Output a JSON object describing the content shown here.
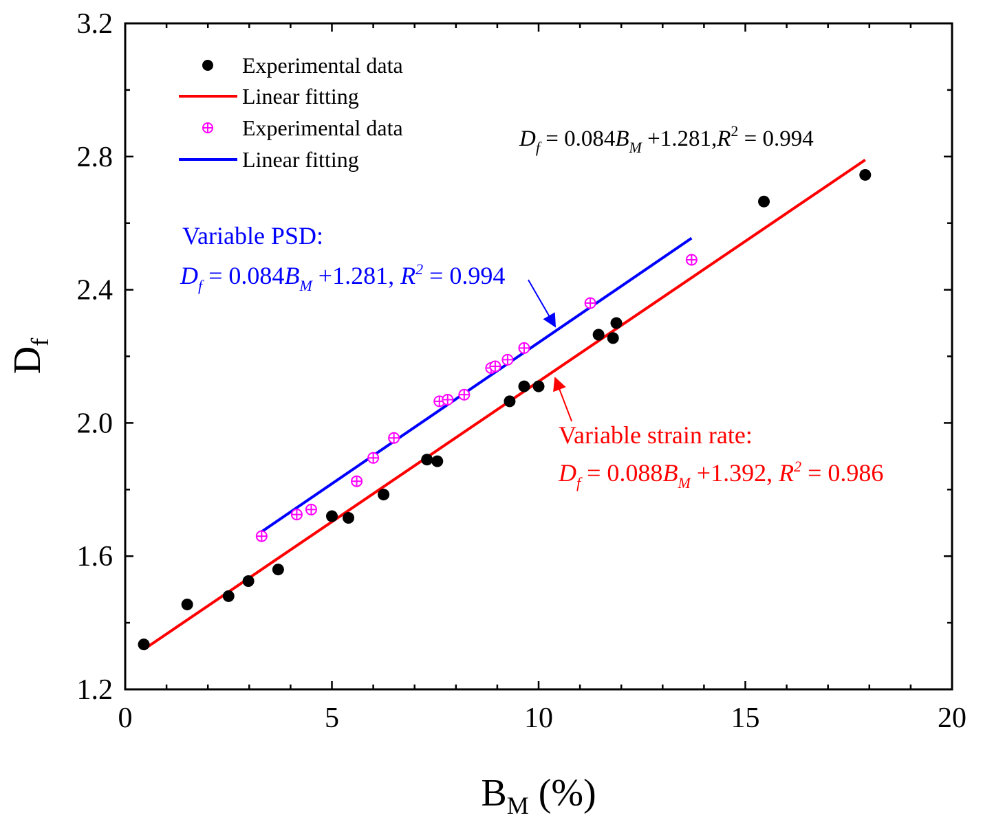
{
  "chart_data": {
    "type": "scatter",
    "xlabel": "B",
    "xlabel_sub": "M",
    "xlabel_unit": " (%)",
    "ylabel": "D",
    "ylabel_sub": "f",
    "xlim": [
      0,
      20
    ],
    "ylim": [
      1.2,
      3.2
    ],
    "x_ticks": [
      0,
      5,
      10,
      15,
      20
    ],
    "x_tick_labels": [
      "0",
      "5",
      "10",
      "15",
      "20"
    ],
    "y_ticks": [
      1.2,
      1.6,
      2.0,
      2.4,
      2.8,
      3.2
    ],
    "y_tick_labels": [
      "1.2",
      "1.6",
      "2.0",
      "2.4",
      "2.8",
      "3.2"
    ],
    "grid": false,
    "legend_position": "top-left",
    "series": [
      {
        "name": "Experimental data",
        "kind": "points",
        "marker": "filled-circle",
        "color": "#000000",
        "x": [
          0.45,
          1.5,
          2.5,
          2.98,
          3.7,
          5.0,
          5.4,
          6.25,
          7.3,
          7.55,
          9.3,
          9.65,
          10.0,
          11.45,
          11.8,
          11.88,
          15.45,
          17.9
        ],
        "y": [
          1.335,
          1.455,
          1.48,
          1.525,
          1.56,
          1.72,
          1.715,
          1.785,
          1.89,
          1.885,
          2.065,
          2.11,
          2.11,
          2.265,
          2.255,
          2.3,
          2.665,
          2.745
        ]
      },
      {
        "name": "Linear fitting",
        "kind": "line",
        "color": "#ff0000",
        "x": [
          0.45,
          17.9
        ],
        "y": [
          1.32,
          2.79
        ]
      },
      {
        "name": "Experimental data",
        "kind": "points",
        "marker": "circle-plus",
        "color": "#ff00ff",
        "x": [
          3.3,
          4.15,
          4.5,
          5.6,
          6.0,
          6.5,
          7.6,
          7.8,
          8.2,
          8.85,
          8.95,
          9.25,
          9.65,
          11.25,
          13.7
        ],
        "y": [
          1.66,
          1.725,
          1.74,
          1.825,
          1.895,
          1.955,
          2.065,
          2.07,
          2.085,
          2.165,
          2.17,
          2.19,
          2.225,
          2.36,
          2.49
        ]
      },
      {
        "name": "Linear fitting",
        "kind": "line",
        "color": "#0000ff",
        "x": [
          3.2,
          13.7
        ],
        "y": [
          1.665,
          2.555
        ]
      }
    ],
    "annotations": {
      "top_equation": {
        "Df": "D",
        "f": "f",
        "eq1": " = 0.084",
        "B": "B",
        "M": "M",
        "eq2": " +1.281,",
        "R": "R",
        "two": "2",
        "eq3": " = 0.994",
        "color": "#000000"
      },
      "psd_title": "Variable PSD:",
      "psd_equation": {
        "Df": "D",
        "f": "f",
        "eq1": " = 0.084",
        "B": "B",
        "M": "M",
        "eq2": " +1.281, ",
        "R": "R",
        "two": "2",
        "eq3": " = 0.994",
        "color": "#0000ff",
        "arrow_from": [
          9.75,
          2.43
        ],
        "arrow_to": [
          10.4,
          2.29
        ]
      },
      "strain_title": "Variable strain rate:",
      "strain_equation": {
        "Df": "D",
        "f": "f",
        "eq1": " = 0.088",
        "B": "B",
        "M": "M",
        "eq2": " +1.392, ",
        "R": "R",
        "two": "2",
        "eq3": " = 0.986",
        "color": "#ff0000",
        "arrow_from": [
          10.8,
          2.005
        ],
        "arrow_to": [
          10.4,
          2.135
        ]
      }
    }
  }
}
